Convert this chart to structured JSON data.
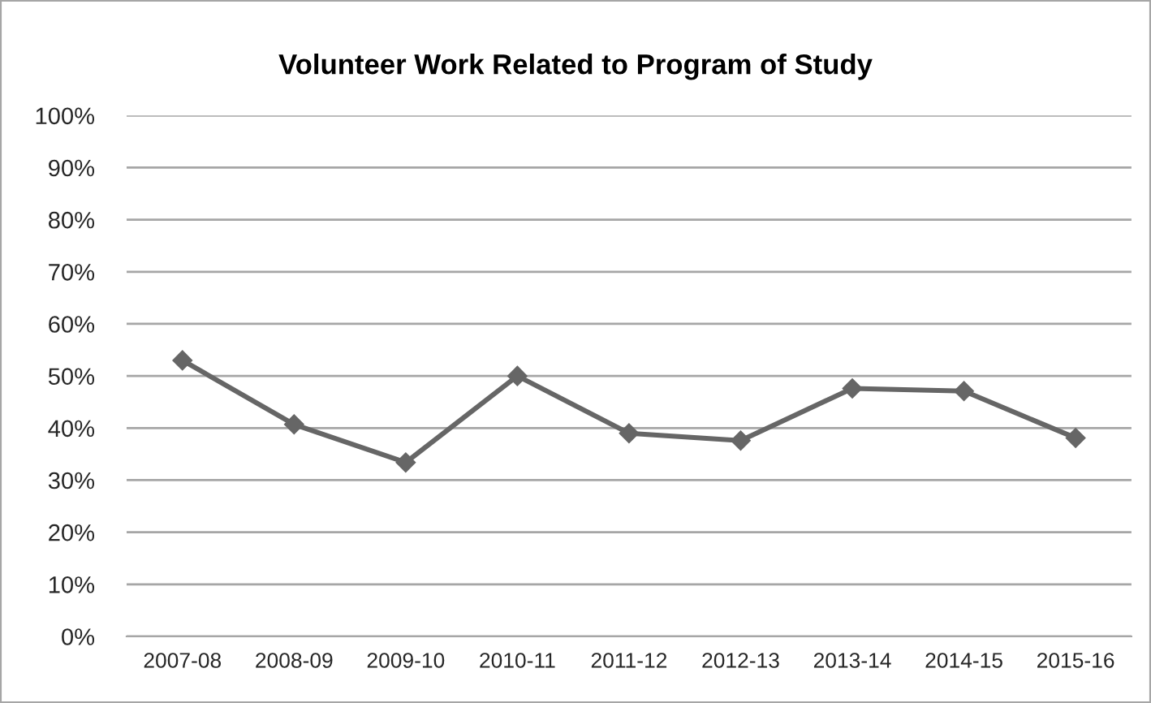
{
  "chart_data": {
    "type": "line",
    "title": "Volunteer Work Related to Program of Study",
    "categories": [
      "2007-08",
      "2008-09",
      "2009-10",
      "2010-11",
      "2011-12",
      "2012-13",
      "2013-14",
      "2014-15",
      "2015-16"
    ],
    "series": [
      {
        "color": "#666666",
        "values": [
          53.0,
          40.7,
          33.4,
          50.0,
          39.0,
          37.6,
          47.6,
          47.1,
          38.1
        ]
      }
    ],
    "ylim": [
      0,
      100
    ],
    "yticks": [
      {
        "value": 0,
        "label": "0%"
      },
      {
        "value": 10,
        "label": "10%"
      },
      {
        "value": 20,
        "label": "20%"
      },
      {
        "value": 30,
        "label": "30%"
      },
      {
        "value": 40,
        "label": "40%"
      },
      {
        "value": 50,
        "label": "50%"
      },
      {
        "value": 60,
        "label": "60%"
      },
      {
        "value": 70,
        "label": "70%"
      },
      {
        "value": 80,
        "label": "80%"
      },
      {
        "value": 90,
        "label": "90%"
      },
      {
        "value": 100,
        "label": "100%"
      }
    ],
    "grid": "y",
    "marker": "diamond",
    "line_style": "solid"
  }
}
